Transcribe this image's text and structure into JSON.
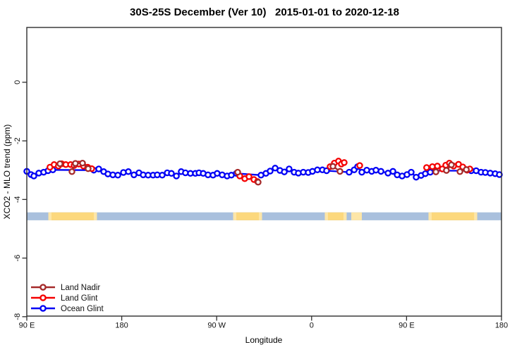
{
  "title": "30S-25S December (Ver 10)   2015-01-01 to 2020-12-18",
  "chart_data": {
    "type": "scatter",
    "title": "30S-25S December (Ver 10)   2015-01-01 to 2020-12-18",
    "xlabel": "Longitude",
    "ylabel": "XCO2 - MLO trend (ppm)",
    "x_axis_note": "wrap-around longitude axis spanning 450 degrees east from 90E",
    "x_range_deg": [
      90,
      540
    ],
    "y_range": [
      -7.98,
      1.87
    ],
    "grid": false,
    "x_ticks": [
      {
        "deg": 90,
        "label": "90 E"
      },
      {
        "deg": 180,
        "label": "180"
      },
      {
        "deg": 270,
        "label": "90 W"
      },
      {
        "deg": 360,
        "label": "0"
      },
      {
        "deg": 450,
        "label": "90 E"
      },
      {
        "deg": 540,
        "label": "180"
      }
    ],
    "y_ticks": [
      {
        "v": 0,
        "label": "0"
      },
      {
        "v": -2,
        "label": "-2"
      },
      {
        "v": -4,
        "label": "-4"
      },
      {
        "v": -6,
        "label": "-6"
      },
      {
        "v": -8,
        "label": "-8"
      }
    ],
    "legend": [
      {
        "label": "Land Nadir",
        "color": "#A52A2A"
      },
      {
        "label": "Land Glint",
        "color": "#F50000"
      },
      {
        "label": "Ocean Glint",
        "color": "#0000F5"
      }
    ],
    "legend_position": "bottom-left",
    "series": [
      {
        "name": "Ocean Glint",
        "color": "#0000F5",
        "gap_threshold_deg": 500,
        "points": [
          [
            90.0,
            -3.04
          ],
          [
            94.0,
            -3.15
          ],
          [
            96.7,
            -3.2
          ],
          [
            101.4,
            -3.1
          ],
          [
            106.0,
            -3.07
          ],
          [
            110.1,
            -3.02
          ],
          [
            114.7,
            -2.99
          ],
          [
            153.5,
            -3.0
          ],
          [
            158.2,
            -2.96
          ],
          [
            162.9,
            -3.05
          ],
          [
            166.9,
            -3.13
          ],
          [
            171.6,
            -3.16
          ],
          [
            176.3,
            -3.17
          ],
          [
            181.6,
            -3.08
          ],
          [
            186.3,
            -3.05
          ],
          [
            191.6,
            -3.16
          ],
          [
            196.3,
            -3.09
          ],
          [
            200.3,
            -3.16
          ],
          [
            205.0,
            -3.17
          ],
          [
            209.7,
            -3.17
          ],
          [
            213.7,
            -3.16
          ],
          [
            218.4,
            -3.17
          ],
          [
            223.1,
            -3.09
          ],
          [
            227.1,
            -3.11
          ],
          [
            231.8,
            -3.2
          ],
          [
            236.4,
            -3.05
          ],
          [
            240.4,
            -3.09
          ],
          [
            245.1,
            -3.11
          ],
          [
            249.8,
            -3.11
          ],
          [
            253.2,
            -3.09
          ],
          [
            257.2,
            -3.11
          ],
          [
            261.8,
            -3.16
          ],
          [
            266.5,
            -3.17
          ],
          [
            270.5,
            -3.11
          ],
          [
            275.2,
            -3.16
          ],
          [
            279.9,
            -3.2
          ],
          [
            283.9,
            -3.17
          ],
          [
            288.6,
            -3.11
          ],
          [
            312.0,
            -3.17
          ],
          [
            316.7,
            -3.11
          ],
          [
            320.7,
            -3.03
          ],
          [
            325.4,
            -2.93
          ],
          [
            330.0,
            -3.01
          ],
          [
            334.1,
            -3.06
          ],
          [
            338.7,
            -2.96
          ],
          [
            343.4,
            -3.07
          ],
          [
            347.4,
            -3.1
          ],
          [
            352.1,
            -3.07
          ],
          [
            356.8,
            -3.08
          ],
          [
            360.8,
            -3.04
          ],
          [
            365.5,
            -2.99
          ],
          [
            370.2,
            -2.99
          ],
          [
            374.2,
            -3.02
          ],
          [
            395.6,
            -3.07
          ],
          [
            400.3,
            -2.99
          ],
          [
            403.6,
            -2.88
          ],
          [
            407.6,
            -3.07
          ],
          [
            412.3,
            -3.0
          ],
          [
            417.0,
            -3.04
          ],
          [
            421.0,
            -3.0
          ],
          [
            425.7,
            -3.04
          ],
          [
            432.4,
            -3.1
          ],
          [
            437.1,
            -3.04
          ],
          [
            441.1,
            -3.16
          ],
          [
            445.8,
            -3.2
          ],
          [
            450.4,
            -3.15
          ],
          [
            454.4,
            -3.07
          ],
          [
            459.1,
            -3.24
          ],
          [
            463.8,
            -3.18
          ],
          [
            467.8,
            -3.12
          ],
          [
            472.5,
            -3.07
          ],
          [
            477.2,
            -3.02
          ],
          [
            511.3,
            -3.02
          ],
          [
            516.0,
            -3.02
          ],
          [
            520.6,
            -3.07
          ],
          [
            524.7,
            -3.08
          ],
          [
            529.3,
            -3.1
          ],
          [
            534.0,
            -3.12
          ],
          [
            538.0,
            -3.15
          ]
        ]
      },
      {
        "name": "Land Glint",
        "color": "#F50000",
        "gap_threshold_deg": 12,
        "points": [
          [
            111.9,
            -2.9
          ],
          [
            115.9,
            -2.81
          ],
          [
            119.9,
            -2.86
          ],
          [
            123.0,
            -2.78
          ],
          [
            127.0,
            -2.81
          ],
          [
            131.5,
            -2.81
          ],
          [
            134.8,
            -2.84
          ],
          [
            139.3,
            -2.79
          ],
          [
            143.7,
            -2.86
          ],
          [
            147.7,
            -2.9
          ],
          [
            151.5,
            -2.95
          ],
          [
            291.9,
            -3.2
          ],
          [
            296.6,
            -3.29
          ],
          [
            300.6,
            -3.22
          ],
          [
            305.3,
            -3.32
          ],
          [
            308.7,
            -3.39
          ],
          [
            377.5,
            -2.88
          ],
          [
            381.5,
            -2.76
          ],
          [
            385.5,
            -2.69
          ],
          [
            388.2,
            -2.79
          ],
          [
            390.9,
            -2.74
          ],
          [
            405.6,
            -2.84
          ],
          [
            469.0,
            -2.91
          ],
          [
            474.5,
            -2.88
          ],
          [
            479.2,
            -2.86
          ],
          [
            483.9,
            -2.96
          ],
          [
            487.2,
            -2.83
          ],
          [
            490.6,
            -2.76
          ],
          [
            494.6,
            -2.86
          ],
          [
            499.3,
            -2.8
          ],
          [
            503.3,
            -2.89
          ],
          [
            507.3,
            -3.0
          ],
          [
            510.0,
            -2.96
          ]
        ]
      },
      {
        "name": "Land Nadir",
        "color": "#A52A2A",
        "gap_threshold_deg": 8,
        "points": [
          [
            121.4,
            -2.78
          ],
          [
            132.8,
            -3.05
          ],
          [
            136.1,
            -2.77
          ],
          [
            142.8,
            -2.76
          ],
          [
            148.2,
            -2.95
          ],
          [
            289.9,
            -3.07
          ],
          [
            309.3,
            -3.41
          ],
          [
            380.2,
            -2.87
          ],
          [
            386.9,
            -3.04
          ],
          [
            477.8,
            -3.06
          ],
          [
            487.8,
            -3.01
          ],
          [
            492.5,
            -2.82
          ],
          [
            500.6,
            -3.05
          ],
          [
            506.7,
            -2.98
          ]
        ]
      }
    ],
    "surface_band": {
      "description": "ocean/land strip along longitude",
      "y_range_ppm": [
        -4.44,
        -4.71
      ],
      "ocean_color": "#A9C0DD",
      "land_color": "#FCD87D",
      "land_mix_color": "#FDE6A8",
      "ocean_deg": [
        90,
        540
      ],
      "land_segments_deg": [
        [
          113.4,
          153.5
        ],
        [
          288.6,
          310.0
        ],
        [
          375.5,
          390.2
        ],
        [
          473.8,
          514.0
        ]
      ],
      "mixed_segments_deg": [
        [
          397.6,
          407.6
        ]
      ],
      "edge_feather_deg": 3.0
    }
  }
}
